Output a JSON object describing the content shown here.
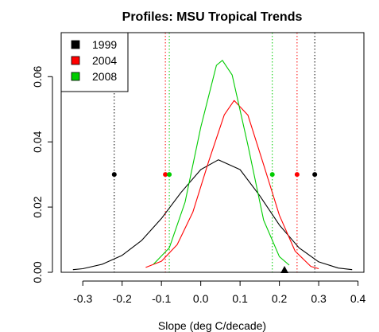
{
  "chart_data": {
    "type": "line",
    "title": "Profiles: MSU Tropical Trends",
    "xlabel": "Slope (deg C/decade)",
    "ylabel": "",
    "xlim": [
      -0.355,
      0.415
    ],
    "ylim": [
      0.0,
      0.0735
    ],
    "x_ticks": [
      -0.3,
      -0.2,
      -0.1,
      0.0,
      0.1,
      0.2,
      0.3,
      0.4
    ],
    "x_tick_labels": [
      "-0.3",
      "-0.2",
      "-0.1",
      "0.0",
      "0.1",
      "0.2",
      "0.3",
      "0.4"
    ],
    "y_ticks": [
      0.0,
      0.02,
      0.04,
      0.06
    ],
    "y_tick_labels": [
      "0.00",
      "0.02",
      "0.04",
      "0.06"
    ],
    "grid": false,
    "legend_position": "top-left",
    "series": [
      {
        "name": "1999",
        "color": "#000000",
        "x": [
          -0.325,
          -0.3,
          -0.25,
          -0.2,
          -0.15,
          -0.1,
          -0.05,
          0.0,
          0.045,
          0.1,
          0.15,
          0.2,
          0.25,
          0.3,
          0.35,
          0.385
        ],
        "y": [
          0.0008,
          0.0011,
          0.0025,
          0.0052,
          0.0098,
          0.0165,
          0.0245,
          0.0315,
          0.0345,
          0.0315,
          0.0235,
          0.0145,
          0.0075,
          0.0032,
          0.0013,
          0.0008
        ],
        "lower": -0.22,
        "upper": 0.29,
        "marker_y": 0.03
      },
      {
        "name": "2004",
        "color": "#ff0000",
        "x": [
          -0.14,
          -0.1,
          -0.06,
          -0.02,
          0.02,
          0.06,
          0.085,
          0.12,
          0.16,
          0.2,
          0.24,
          0.28,
          0.3
        ],
        "y": [
          0.0015,
          0.0034,
          0.0085,
          0.0185,
          0.034,
          0.0483,
          0.0527,
          0.0482,
          0.033,
          0.0175,
          0.0065,
          0.0018,
          0.0011
        ],
        "lower": -0.09,
        "upper": 0.245,
        "marker_y": 0.03
      },
      {
        "name": "2008",
        "color": "#00cc00",
        "x": [
          -0.12,
          -0.08,
          -0.04,
          0.0,
          0.04,
          0.055,
          0.08,
          0.12,
          0.16,
          0.2,
          0.225
        ],
        "y": [
          0.0025,
          0.0075,
          0.0215,
          0.0445,
          0.0635,
          0.065,
          0.0605,
          0.039,
          0.016,
          0.0048,
          0.0022
        ],
        "lower": -0.08,
        "upper": 0.182,
        "marker_y": 0.03
      }
    ],
    "triangle_marker": {
      "x": 0.213,
      "y": 0.0,
      "color": "#000000"
    }
  }
}
